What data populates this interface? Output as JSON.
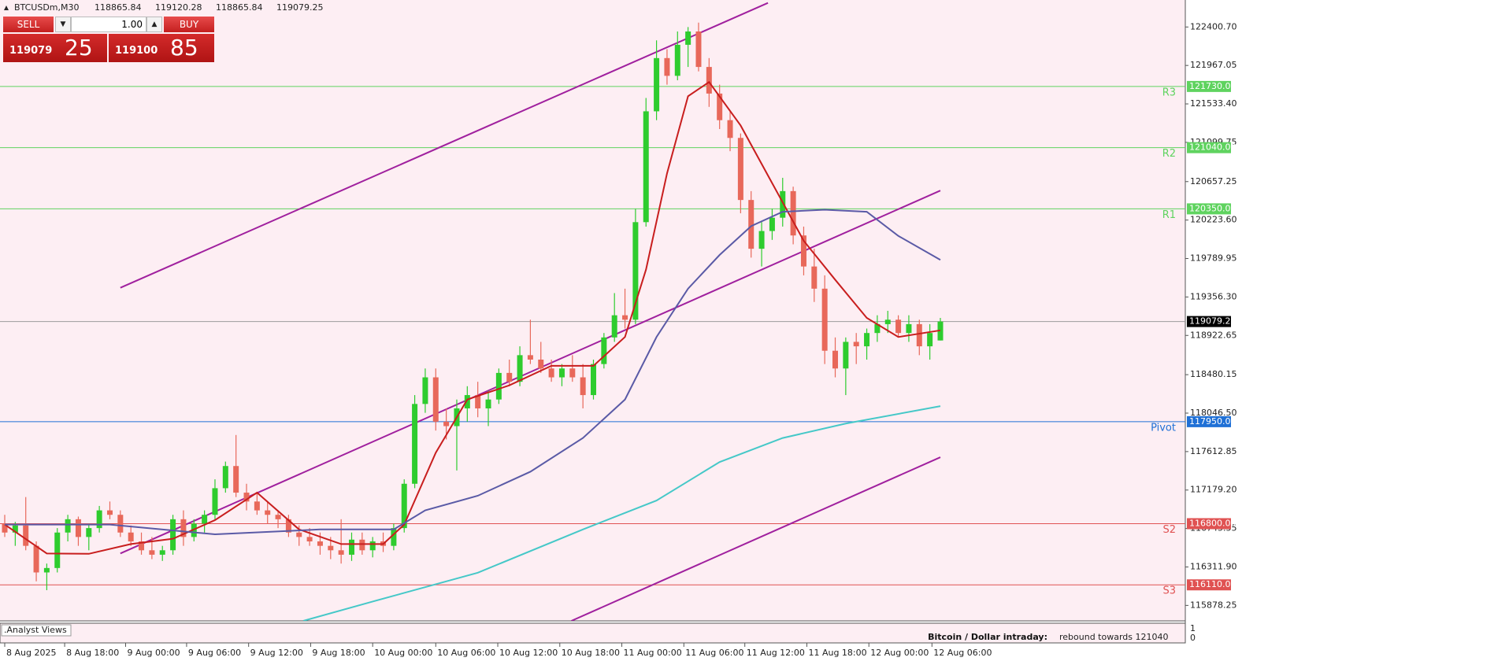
{
  "trade_panel": {
    "sell": "SELL",
    "buy": "BUY",
    "lot": "1.00",
    "bid_main": "119079",
    "bid_pips": "25",
    "ask_main": "119100",
    "ask_pips": "85"
  },
  "chart_data": {
    "type": "candlestick",
    "symbol": "BTCUSDm,M30",
    "bull_color": "#2ecc2e",
    "bear_color": "#e8685a",
    "background": "#fdeef3",
    "candles": [
      [
        116800,
        116900,
        116650,
        116700
      ],
      [
        116700,
        116820,
        116550,
        116780
      ],
      [
        116780,
        117100,
        116500,
        116550
      ],
      [
        116550,
        116600,
        116150,
        116250
      ],
      [
        116250,
        116350,
        116050,
        116300
      ],
      [
        116300,
        116750,
        116250,
        116700
      ],
      [
        116700,
        116900,
        116600,
        116850
      ],
      [
        116850,
        116880,
        116550,
        116650
      ],
      [
        116650,
        116800,
        116500,
        116750
      ],
      [
        116750,
        117000,
        116700,
        116950
      ],
      [
        116950,
        117050,
        116850,
        116900
      ],
      [
        116900,
        116950,
        116650,
        116700
      ],
      [
        116700,
        116780,
        116550,
        116600
      ],
      [
        116600,
        116700,
        116450,
        116500
      ],
      [
        116500,
        116650,
        116400,
        116450
      ],
      [
        116450,
        116550,
        116380,
        116500
      ],
      [
        116500,
        116900,
        116450,
        116850
      ],
      [
        116850,
        116950,
        116550,
        116650
      ],
      [
        116650,
        116850,
        116600,
        116800
      ],
      [
        116800,
        116950,
        116700,
        116900
      ],
      [
        116900,
        117300,
        116850,
        117200
      ],
      [
        117200,
        117500,
        117150,
        117450
      ],
      [
        117450,
        117800,
        117100,
        117150
      ],
      [
        117150,
        117250,
        116950,
        117050
      ],
      [
        117050,
        117150,
        116900,
        116950
      ],
      [
        116950,
        117050,
        116800,
        116900
      ],
      [
        116900,
        116950,
        116750,
        116850
      ],
      [
        116850,
        116900,
        116650,
        116700
      ],
      [
        116700,
        116780,
        116550,
        116650
      ],
      [
        116650,
        116750,
        116550,
        116600
      ],
      [
        116600,
        116700,
        116450,
        116550
      ],
      [
        116550,
        116650,
        116400,
        116500
      ],
      [
        116500,
        116850,
        116350,
        116450
      ],
      [
        116450,
        116700,
        116380,
        116620
      ],
      [
        116620,
        116700,
        116450,
        116500
      ],
      [
        116500,
        116650,
        116420,
        116600
      ],
      [
        116600,
        116700,
        116480,
        116550
      ],
      [
        116550,
        116800,
        116500,
        116750
      ],
      [
        116750,
        117300,
        116700,
        117250
      ],
      [
        117250,
        118250,
        117200,
        118150
      ],
      [
        118150,
        118550,
        118050,
        118450
      ],
      [
        118450,
        118550,
        117850,
        117950
      ],
      [
        117950,
        118100,
        117750,
        117900
      ],
      [
        117900,
        118200,
        117400,
        118100
      ],
      [
        118100,
        118350,
        117950,
        118250
      ],
      [
        118250,
        118400,
        118000,
        118100
      ],
      [
        118100,
        118300,
        117900,
        118200
      ],
      [
        118200,
        118550,
        118150,
        118500
      ],
      [
        118500,
        118650,
        118350,
        118400
      ],
      [
        118400,
        118800,
        118350,
        118700
      ],
      [
        118700,
        119100,
        118600,
        118650
      ],
      [
        118650,
        118850,
        118500,
        118550
      ],
      [
        118550,
        118650,
        118400,
        118450
      ],
      [
        118450,
        118600,
        118350,
        118550
      ],
      [
        118550,
        118700,
        118400,
        118450
      ],
      [
        118450,
        118600,
        118100,
        118250
      ],
      [
        118250,
        118650,
        118200,
        118600
      ],
      [
        118600,
        118950,
        118550,
        118900
      ],
      [
        118900,
        119400,
        118850,
        119150
      ],
      [
        119150,
        119450,
        119000,
        119100
      ],
      [
        119100,
        120350,
        119050,
        120200
      ],
      [
        120200,
        121600,
        120150,
        121450
      ],
      [
        121450,
        122250,
        121350,
        122050
      ],
      [
        122050,
        122150,
        121750,
        121850
      ],
      [
        121850,
        122350,
        121800,
        122200
      ],
      [
        122200,
        122400,
        121950,
        122350
      ],
      [
        122350,
        122450,
        121900,
        121950
      ],
      [
        121950,
        122050,
        121500,
        121650
      ],
      [
        121650,
        121750,
        121250,
        121350
      ],
      [
        121350,
        121450,
        121000,
        121150
      ],
      [
        121150,
        121200,
        120300,
        120450
      ],
      [
        120450,
        120550,
        119800,
        119900
      ],
      [
        119900,
        120200,
        119700,
        120100
      ],
      [
        120100,
        120350,
        120000,
        120250
      ],
      [
        120250,
        120700,
        120150,
        120550
      ],
      [
        120550,
        120600,
        119950,
        120050
      ],
      [
        120050,
        120150,
        119600,
        119700
      ],
      [
        119700,
        119900,
        119300,
        119450
      ],
      [
        119450,
        119600,
        118600,
        118750
      ],
      [
        118750,
        118900,
        118450,
        118550
      ],
      [
        118550,
        118900,
        118250,
        118850
      ],
      [
        118850,
        118950,
        118600,
        118800
      ],
      [
        118800,
        119000,
        118650,
        118950
      ],
      [
        118950,
        119150,
        118850,
        119050
      ],
      [
        119050,
        119200,
        118950,
        119100
      ],
      [
        119100,
        119150,
        118900,
        118950
      ],
      [
        118950,
        119150,
        118850,
        119050
      ],
      [
        119050,
        119100,
        118700,
        118800
      ],
      [
        118800,
        119050,
        118650,
        118950
      ],
      [
        118865.84,
        119120.28,
        118865.84,
        119079.25
      ]
    ],
    "xlim": [
      -0.45,
      112.3
    ],
    "ylim": [
      115704,
      122705
    ],
    "xticks": [
      {
        "value": 0,
        "label": "8 Aug 2025"
      },
      {
        "value": 5.7,
        "label": "8 Aug 18:00"
      },
      {
        "value": 11.5,
        "label": "9 Aug 00:00"
      },
      {
        "value": 17.3,
        "label": "9 Aug 06:00"
      },
      {
        "value": 23.2,
        "label": "9 Aug 12:00"
      },
      {
        "value": 29.1,
        "label": "9 Aug 18:00"
      },
      {
        "value": 35,
        "label": "10 Aug 00:00"
      },
      {
        "value": 41,
        "label": "10 Aug 06:00"
      },
      {
        "value": 46.9,
        "label": "10 Aug 12:00"
      },
      {
        "value": 52.8,
        "label": "10 Aug 18:00"
      },
      {
        "value": 58.7,
        "label": "11 Aug 00:00"
      },
      {
        "value": 64.6,
        "label": "11 Aug 06:00"
      },
      {
        "value": 70.4,
        "label": "11 Aug 12:00"
      },
      {
        "value": 76.3,
        "label": "11 Aug 18:00"
      },
      {
        "value": 82.2,
        "label": "12 Aug 00:00"
      },
      {
        "value": 88.2,
        "label": "12 Aug 06:00"
      }
    ],
    "yticks": [
      {
        "value": 122400.7,
        "label": "122400.70"
      },
      121967.05,
      {
        "value": 121533.4,
        "label": "121533.40"
      },
      121099.75,
      120657.25,
      {
        "value": 120223.6,
        "label": "120223.60"
      },
      119789.95,
      {
        "value": 119356.3,
        "label": "119356.30"
      },
      118922.65,
      118480.15,
      {
        "value": 118046.5,
        "label": "118046.50"
      },
      117612.85,
      {
        "value": 117179.2,
        "label": "117179.20"
      },
      116745.55,
      {
        "value": 116311.9,
        "label": "116311.90"
      },
      115878.25
    ],
    "series": [
      {
        "color": "#c81e1e",
        "x": [
          0,
          4,
          8,
          12,
          16,
          20,
          24,
          28,
          32,
          36,
          38,
          41,
          44,
          48,
          52,
          56,
          59,
          61,
          63,
          65,
          67,
          70,
          73,
          76,
          79,
          82,
          85,
          89
        ],
        "values": [
          116790,
          116464,
          116460,
          116570,
          116630,
          116840,
          117150,
          116735,
          116570,
          116570,
          116790,
          117600,
          118200,
          118360,
          118580,
          118580,
          118905,
          119665,
          120750,
          121620,
          121780,
          121290,
          120640,
          119990,
          119550,
          119120,
          118905,
          118980
        ]
      },
      {
        "color": "#5a5aa6",
        "x": [
          0,
          10,
          20,
          30,
          37,
          40,
          45,
          50,
          55,
          59,
          62,
          65,
          68,
          71,
          74,
          78,
          82,
          85,
          89
        ],
        "values": [
          116790,
          116790,
          116680,
          116735,
          116735,
          116950,
          117115,
          117386,
          117766,
          118200,
          118905,
          119450,
          119830,
          120155,
          120317,
          120340,
          120317,
          120045,
          119775
        ]
      },
      {
        "color": "#45c8c8",
        "x": [
          28.4,
          35,
          45,
          55,
          62,
          68,
          74,
          80,
          89
        ],
        "values": [
          115704,
          115922,
          116247,
          116735,
          117061,
          117495,
          117766,
          117929,
          118125
        ]
      }
    ],
    "trendlines": [
      {
        "color": "#a0209e",
        "x": [
          11,
          72.6
        ],
        "values": [
          119460,
          122672
        ]
      },
      {
        "color": "#a0209e",
        "x": [
          11,
          89
        ],
        "values": [
          116464,
          120556
        ]
      },
      {
        "color": "#a0209e",
        "x": [
          53.9,
          89
        ],
        "values": [
          115704,
          117549
        ]
      }
    ],
    "levels": [
      {
        "name": "R3",
        "value": 121730,
        "label": "121730.00",
        "color": "#5fd35f"
      },
      {
        "name": "R2",
        "value": 121040,
        "label": "121040.00",
        "color": "#5fd35f"
      },
      {
        "name": "R1",
        "value": 120350,
        "label": "120350.00",
        "color": "#5fd35f"
      },
      {
        "name": "Pivot",
        "value": 117950,
        "label": "117950.00",
        "color": "#1f70d6"
      },
      {
        "name": "S2",
        "value": 116800,
        "label": "116800.00",
        "color": "#e05252"
      },
      {
        "name": "S3",
        "value": 116110,
        "label": "116110.00",
        "color": "#e05252"
      }
    ],
    "indicator": {
      "title": ".Analyst Views",
      "headline": "Bitcoin / Dollar intraday:",
      "text": "rebound towards 121040",
      "axis_top": "1",
      "axis_bottom": "0"
    }
  }
}
